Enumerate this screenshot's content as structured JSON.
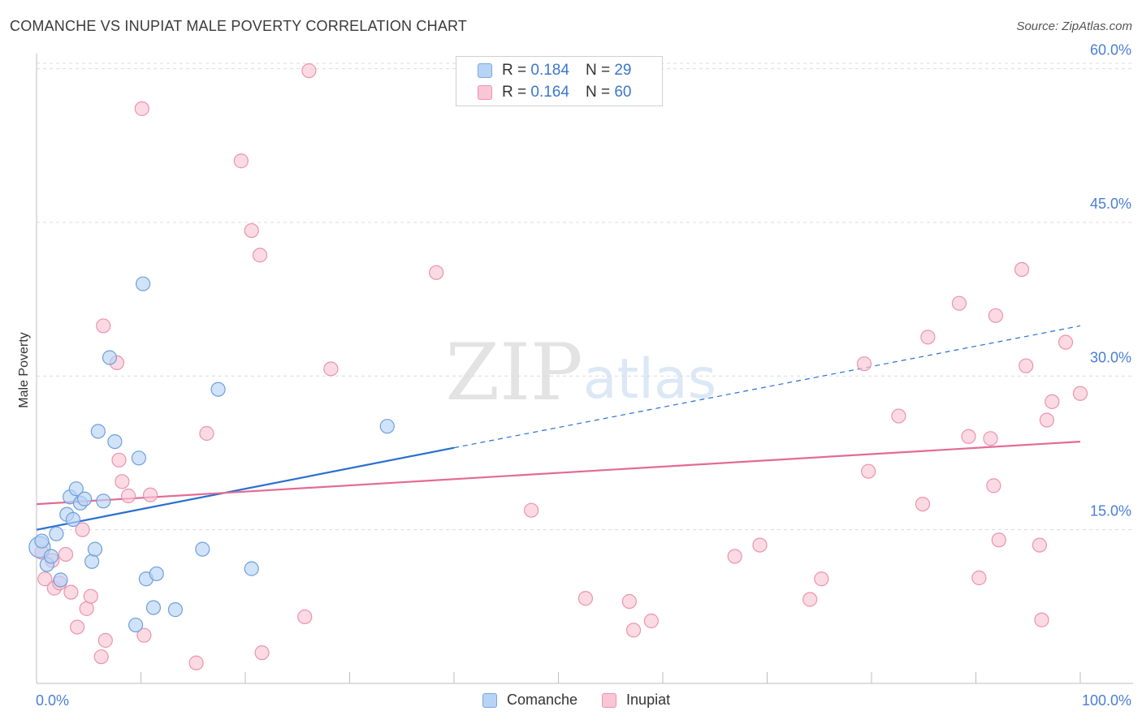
{
  "title": "COMANCHE VS INUPIAT MALE POVERTY CORRELATION CHART",
  "source": "Source: ZipAtlas.com",
  "watermark": {
    "zip": "ZIP",
    "atlas": "atlas"
  },
  "legend": {
    "rows": [
      {
        "r_label": "R =",
        "r_value": "0.184",
        "n_label": "N =",
        "n_value": "29",
        "color": "#b8d4f5",
        "border": "#7aa6e0"
      },
      {
        "r_label": "R =",
        "r_value": "0.164",
        "n_label": "N =",
        "n_value": "60",
        "color": "#f9c6d5",
        "border": "#eb93ae"
      }
    ]
  },
  "bottom_legend": [
    {
      "label": "Comanche",
      "color": "#b8d4f5",
      "border": "#7aa6e0"
    },
    {
      "label": "Inupiat",
      "color": "#f9c6d5",
      "border": "#eb93ae"
    }
  ],
  "chart_data": {
    "type": "scatter",
    "title": "COMANCHE VS INUPIAT MALE POVERTY CORRELATION CHART",
    "xlabel": "",
    "ylabel": "Male Poverty",
    "xlim": [
      0,
      100
    ],
    "ylim": [
      0,
      61
    ],
    "x_tick_labels": [
      "0.0%",
      "100.0%"
    ],
    "y_ticks": [
      15,
      30,
      45,
      60
    ],
    "y_tick_labels": [
      "15.0%",
      "30.0%",
      "45.0%",
      "60.0%"
    ],
    "grid": true,
    "series": [
      {
        "name": "Comanche",
        "color": "#b8d4f5",
        "stroke": "#6f9fdc",
        "trend_color": "#2a6fd0",
        "trend": {
          "x0": 0,
          "y0": 15.0,
          "x1": 40,
          "y1": 23.0,
          "dashed_to_x": 100,
          "dashed_to_y": 34.9
        },
        "points": [
          [
            0.3,
            13.3
          ],
          [
            0.5,
            13.9
          ],
          [
            1.0,
            11.6
          ],
          [
            1.4,
            12.4
          ],
          [
            1.9,
            14.6
          ],
          [
            2.3,
            10.1
          ],
          [
            2.9,
            16.5
          ],
          [
            3.2,
            18.2
          ],
          [
            3.5,
            16.0
          ],
          [
            3.8,
            19.0
          ],
          [
            4.2,
            17.6
          ],
          [
            4.6,
            18.0
          ],
          [
            5.3,
            11.9
          ],
          [
            5.6,
            13.1
          ],
          [
            5.9,
            24.6
          ],
          [
            6.4,
            17.8
          ],
          [
            7.0,
            31.8
          ],
          [
            7.5,
            23.6
          ],
          [
            9.5,
            5.7
          ],
          [
            9.8,
            22.0
          ],
          [
            10.2,
            39.0
          ],
          [
            10.5,
            10.2
          ],
          [
            11.2,
            7.4
          ],
          [
            11.5,
            10.7
          ],
          [
            13.3,
            7.2
          ],
          [
            15.9,
            13.1
          ],
          [
            17.4,
            28.7
          ],
          [
            20.6,
            11.2
          ],
          [
            33.6,
            25.1
          ]
        ]
      },
      {
        "name": "Inupiat",
        "color": "#f9c6d5",
        "stroke": "#eb93ae",
        "trend_color": "#e36b93",
        "trend": {
          "x0": 0,
          "y0": 17.5,
          "x1": 100,
          "y1": 23.6
        },
        "points": [
          [
            0.5,
            12.8
          ],
          [
            0.8,
            10.2
          ],
          [
            1.5,
            12.0
          ],
          [
            1.7,
            9.3
          ],
          [
            2.2,
            9.8
          ],
          [
            2.8,
            12.6
          ],
          [
            3.3,
            8.9
          ],
          [
            3.9,
            5.5
          ],
          [
            4.4,
            15.0
          ],
          [
            4.8,
            7.3
          ],
          [
            5.2,
            8.5
          ],
          [
            6.2,
            2.6
          ],
          [
            6.4,
            34.9
          ],
          [
            6.6,
            4.2
          ],
          [
            7.7,
            31.3
          ],
          [
            7.9,
            21.8
          ],
          [
            8.2,
            19.7
          ],
          [
            8.8,
            18.3
          ],
          [
            10.1,
            56.1
          ],
          [
            10.3,
            4.7
          ],
          [
            10.9,
            18.4
          ],
          [
            15.3,
            2.0
          ],
          [
            16.3,
            24.4
          ],
          [
            19.6,
            51.0
          ],
          [
            20.6,
            44.2
          ],
          [
            21.4,
            41.8
          ],
          [
            21.6,
            3.0
          ],
          [
            25.7,
            6.5
          ],
          [
            26.1,
            59.8
          ],
          [
            28.2,
            30.7
          ],
          [
            38.3,
            40.1
          ],
          [
            47.4,
            16.9
          ],
          [
            52.6,
            8.3
          ],
          [
            56.8,
            8.0
          ],
          [
            57.2,
            5.2
          ],
          [
            58.9,
            6.1
          ],
          [
            66.9,
            12.4
          ],
          [
            69.3,
            13.5
          ],
          [
            74.1,
            8.2
          ],
          [
            75.2,
            10.2
          ],
          [
            79.3,
            31.2
          ],
          [
            79.7,
            20.7
          ],
          [
            82.6,
            26.1
          ],
          [
            84.9,
            17.5
          ],
          [
            85.4,
            33.8
          ],
          [
            88.4,
            37.1
          ],
          [
            89.3,
            24.1
          ],
          [
            90.3,
            10.3
          ],
          [
            91.4,
            23.9
          ],
          [
            91.7,
            19.3
          ],
          [
            91.9,
            35.9
          ],
          [
            92.2,
            14.0
          ],
          [
            94.4,
            40.4
          ],
          [
            94.8,
            31.0
          ],
          [
            96.1,
            13.5
          ],
          [
            96.3,
            6.2
          ],
          [
            96.8,
            25.7
          ],
          [
            97.3,
            27.5
          ],
          [
            98.6,
            33.3
          ],
          [
            100.0,
            28.3
          ]
        ]
      }
    ]
  }
}
